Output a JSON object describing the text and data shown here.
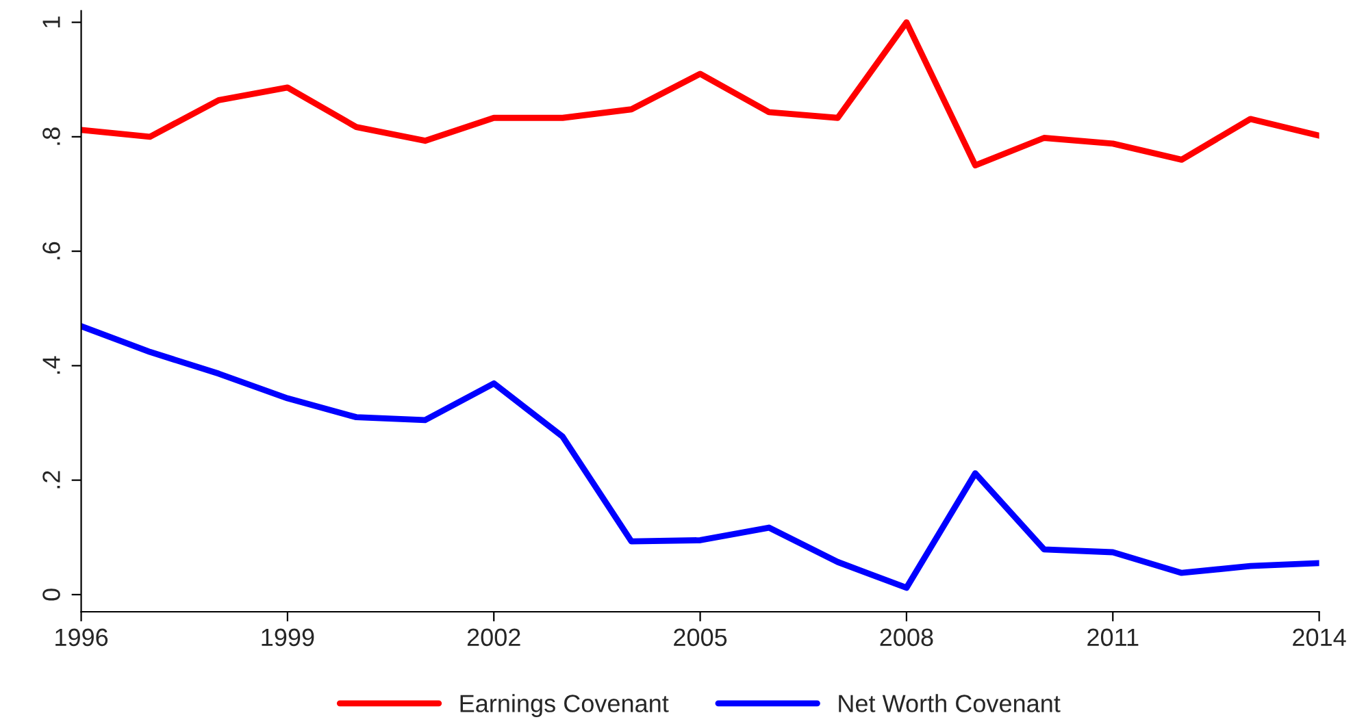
{
  "chart_data": {
    "type": "line",
    "x": [
      1996,
      1997,
      1998,
      1999,
      2000,
      2001,
      2002,
      2003,
      2004,
      2005,
      2006,
      2007,
      2008,
      2009,
      2010,
      2011,
      2012,
      2013,
      2014
    ],
    "series": [
      {
        "name": "Earnings Covenant",
        "color": "#ff0000",
        "values": [
          0.812,
          0.8,
          0.864,
          0.886,
          0.817,
          0.793,
          0.833,
          0.833,
          0.848,
          0.91,
          0.843,
          0.833,
          1.0,
          0.75,
          0.798,
          0.788,
          0.76,
          0.831,
          0.802
        ]
      },
      {
        "name": "Net Worth Covenant",
        "color": "#0000ff",
        "values": [
          0.469,
          0.424,
          0.386,
          0.343,
          0.31,
          0.305,
          0.369,
          0.276,
          0.093,
          0.095,
          0.117,
          0.057,
          0.012,
          0.212,
          0.079,
          0.074,
          0.038,
          0.05,
          0.055
        ]
      }
    ],
    "xlim": [
      1996,
      2014
    ],
    "xticks": [
      1996,
      1999,
      2002,
      2005,
      2008,
      2011,
      2014
    ],
    "ylim": [
      -0.03,
      1.02
    ],
    "yticks": [
      0,
      {
        "value": 0.2,
        "label": ".2"
      },
      {
        "value": 0.4,
        "label": ".4"
      },
      {
        "value": 0.6,
        "label": ".6"
      },
      {
        "value": 0.8,
        "label": ".8"
      },
      1
    ],
    "grid": false,
    "legend": "bottom",
    "marker": "none",
    "line_style": "solid"
  }
}
